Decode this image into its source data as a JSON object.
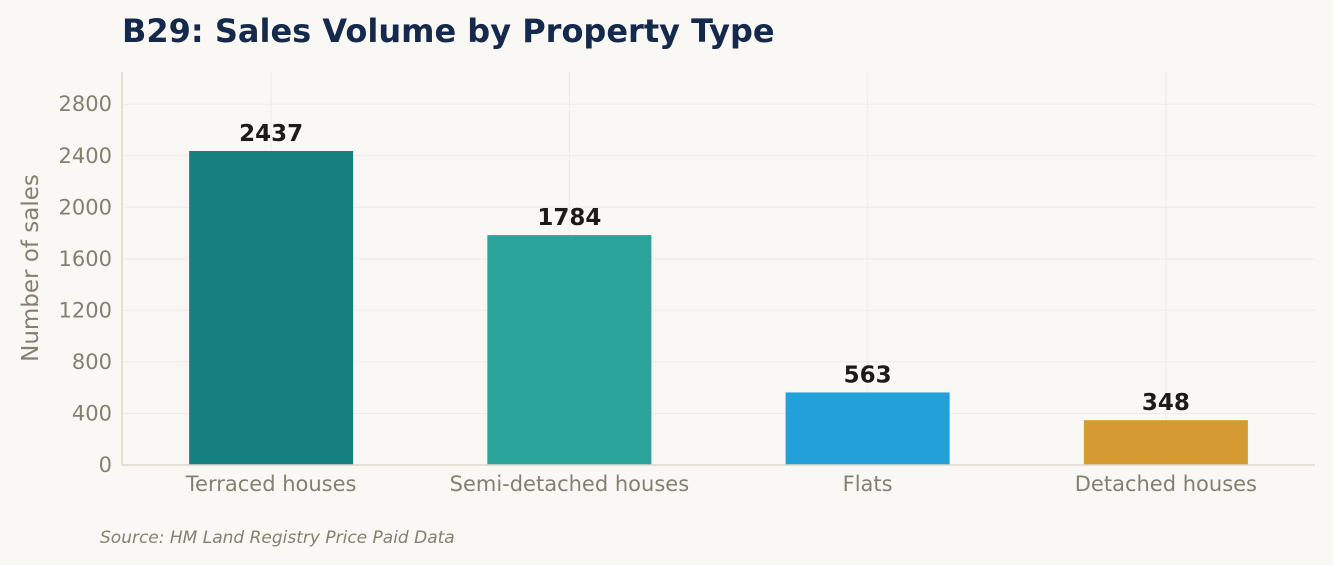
{
  "chart_data": {
    "type": "bar",
    "title": "B29: Sales Volume by Property Type",
    "xlabel": "",
    "ylabel": "Number of sales",
    "categories": [
      "Terraced houses",
      "Semi-detached houses",
      "Flats",
      "Detached houses"
    ],
    "values": [
      2437,
      1784,
      563,
      348
    ],
    "data_labels": [
      "2437",
      "1784",
      "563",
      "348"
    ],
    "colors": [
      "#168180",
      "#2aa39a",
      "#239fd9",
      "#d69a33"
    ],
    "ylim": [
      0,
      3050
    ],
    "yticks": [
      0,
      400,
      800,
      1200,
      1600,
      2000,
      2400,
      2800
    ],
    "grid": true,
    "source": "Source: HM Land Registry Price Paid Data"
  }
}
